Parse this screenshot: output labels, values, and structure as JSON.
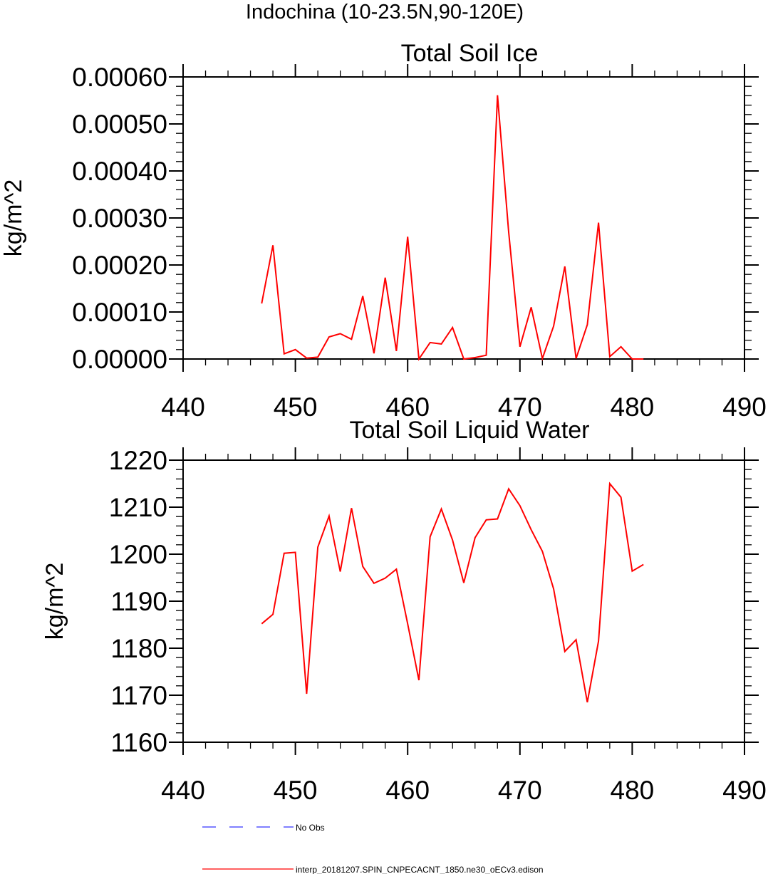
{
  "figure_title": "Indochina (10-23.5N,90-120E)",
  "legend": [
    {
      "label": "No Obs",
      "color": "#3333ff",
      "dash": "dashed"
    },
    {
      "label": "interp_20181207.SPIN_CNPECACNT_1850.ne30_oECv3.edison",
      "color": "#ff0000",
      "dash": "solid"
    }
  ],
  "chart_data": [
    {
      "type": "line",
      "title": "Total Soil Ice",
      "xlabel": "",
      "ylabel": "kg/m^2",
      "xlim": [
        440,
        490
      ],
      "ylim": [
        0,
        0.0006
      ],
      "x_ticks": [
        440,
        450,
        460,
        470,
        480,
        490
      ],
      "x_tick_labels": [
        "440",
        "450",
        "460",
        "470",
        "480",
        "490"
      ],
      "y_ticks": [
        0,
        0.0001,
        0.0002,
        0.0003,
        0.0004,
        0.0005,
        0.0006
      ],
      "y_tick_labels": [
        "0.00000",
        "0.00010",
        "0.00020",
        "0.00030",
        "0.00040",
        "0.00050",
        "0.00060"
      ],
      "series": [
        {
          "name": "interp_20181207.SPIN_CNPECACNT_1850.ne30_oECv3.edison",
          "color": "#ff0000",
          "x": [
            447,
            448,
            449,
            450,
            451,
            452,
            453,
            454,
            455,
            456,
            457,
            458,
            459,
            460,
            461,
            462,
            463,
            464,
            465,
            466,
            467,
            468,
            469,
            470,
            471,
            472,
            473,
            474,
            475,
            476,
            477,
            478,
            479,
            480,
            481
          ],
          "values": [
            0.000118,
            0.000242,
            1.1e-05,
            2e-05,
            2e-06,
            4e-06,
            4.7e-05,
            5.4e-05,
            4.2e-05,
            0.000134,
            1.2e-05,
            0.000173,
            1.7e-05,
            0.00026,
            0.0,
            3.5e-05,
            3.2e-05,
            6.7e-05,
            0.0,
            3e-06,
            8e-06,
            0.000561,
            0.00027,
            2.6e-05,
            0.00011,
            1e-06,
            7e-05,
            0.000197,
            1e-06,
            7.3e-05,
            0.00029,
            5e-06,
            2.6e-05,
            0.0,
            0.0
          ]
        }
      ]
    },
    {
      "type": "line",
      "title": "Total Soil Liquid Water",
      "xlabel": "",
      "ylabel": "kg/m^2",
      "xlim": [
        440,
        490
      ],
      "ylim": [
        1160,
        1220
      ],
      "x_ticks": [
        440,
        450,
        460,
        470,
        480,
        490
      ],
      "x_tick_labels": [
        "440",
        "450",
        "460",
        "470",
        "480",
        "490"
      ],
      "y_ticks": [
        1160,
        1170,
        1180,
        1190,
        1200,
        1210,
        1220
      ],
      "y_tick_labels": [
        "1160",
        "1170",
        "1180",
        "1190",
        "1200",
        "1210",
        "1220"
      ],
      "series": [
        {
          "name": "interp_20181207.SPIN_CNPECACNT_1850.ne30_oECv3.edison",
          "color": "#ff0000",
          "x": [
            447,
            448,
            449,
            450,
            451,
            452,
            453,
            454,
            455,
            456,
            457,
            458,
            459,
            460,
            461,
            462,
            463,
            464,
            465,
            466,
            467,
            468,
            469,
            470,
            471,
            472,
            473,
            474,
            475,
            476,
            477,
            478,
            479,
            480,
            481
          ],
          "values": [
            1185.2,
            1187.2,
            1200.2,
            1200.4,
            1170.3,
            1201.5,
            1208.1,
            1196.3,
            1209.8,
            1197.4,
            1193.8,
            1194.9,
            1196.8,
            1185.2,
            1173.2,
            1203.7,
            1209.6,
            1203.0,
            1193.9,
            1203.5,
            1207.3,
            1207.5,
            1213.9,
            1210.3,
            1205.2,
            1200.6,
            1192.6,
            1179.3,
            1181.8,
            1168.5,
            1181.5,
            1215.0,
            1212.1,
            1196.4,
            1197.8
          ]
        }
      ]
    }
  ]
}
